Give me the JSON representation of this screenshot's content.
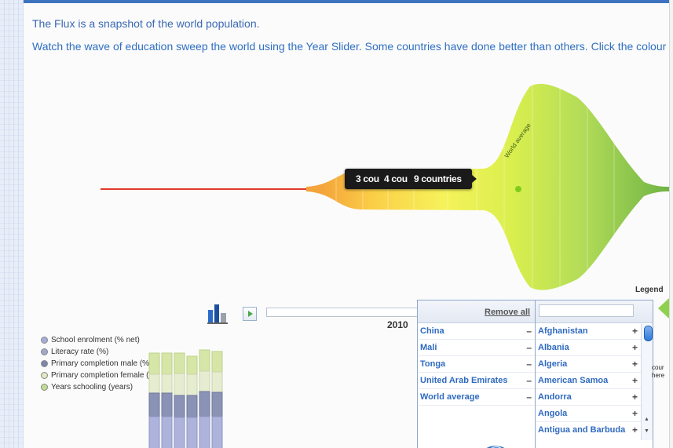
{
  "intro": {
    "line1": "The Flux is a snapshot of the world population.",
    "line2": "Watch the wave of education sweep the world using the Year Slider. Some countries have done better than others. Click the colour"
  },
  "flux": {
    "tooltip": {
      "item1": "3 cou",
      "item2": "4 cou",
      "item3": "9 countries"
    },
    "world_average_label": "World average",
    "colors": [
      "#e03a2c",
      "#f4a43a",
      "#fbd24b",
      "#f7f35a",
      "#d8ef50",
      "#a8d85a",
      "#6eb544"
    ]
  },
  "legend": {
    "title": "Legend"
  },
  "controls": {
    "chart_icon": "bar-chart-icon",
    "play_icon": "play-icon",
    "year": "2010"
  },
  "indicators": [
    {
      "label": "School enrolment (% net)",
      "color": "#a7acde"
    },
    {
      "label": "Literacy rate (%)",
      "color": "#a3a7cd"
    },
    {
      "label": "Primary completion male (%)",
      "color": "#7d86a8"
    },
    {
      "label": "Primary completion female (%)",
      "color": "#dfe8bf"
    },
    {
      "label": "Years schooling (years)",
      "color": "#c3dc92"
    }
  ],
  "country_panel": {
    "remove_all": "Remove all",
    "search_placeholder": "",
    "selected": [
      "China",
      "Mali",
      "Tonga",
      "United Arab Emirates",
      "World average"
    ],
    "all": [
      "Afghanistan",
      "Albania",
      "Algeria",
      "American Samoa",
      "Andorra",
      "Angola",
      "Antigua and Barbuda"
    ],
    "minus_symbol": "–",
    "plus_symbol": "+"
  },
  "right_fragments": {
    "frag1": "cour",
    "frag2": "here"
  }
}
